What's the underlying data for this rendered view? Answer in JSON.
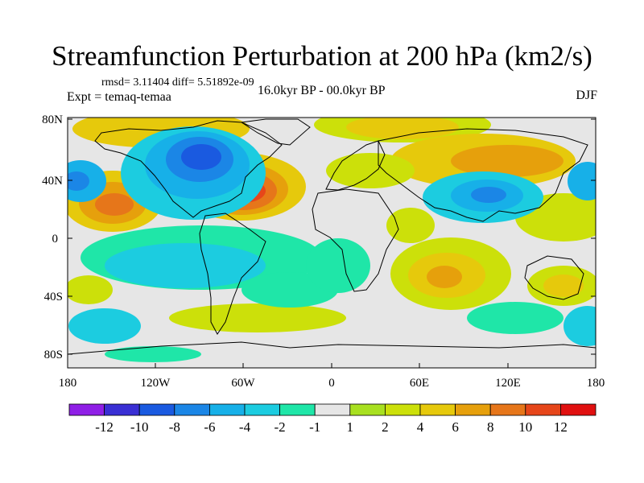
{
  "title": "Streamfunction Perturbation at 200 hPa (km2/s)",
  "stats": "rmsd= 3.11404 diff= 5.51892e-09",
  "experiment": "Expt = temaq-temaa",
  "period": "16.0kyr BP - 00.0kyr BP",
  "season": "DJF",
  "axes": {
    "lat_ticks": [
      "80N",
      "40N",
      "0",
      "40S",
      "80S"
    ],
    "lon_ticks": [
      "180",
      "120W",
      "60W",
      "0",
      "60E",
      "120E",
      "180"
    ]
  },
  "colorbar": {
    "levels": [
      "-12",
      "-10",
      "-8",
      "-6",
      "-4",
      "-2",
      "-1",
      "1",
      "2",
      "4",
      "6",
      "8",
      "10",
      "12"
    ],
    "colors": [
      "#8f1fe6",
      "#3a2fd4",
      "#1a5ae0",
      "#1b86e6",
      "#17b0e8",
      "#1ccce0",
      "#1fe6a8",
      "#e6e6e6",
      "#a8e020",
      "#cce00a",
      "#e6c90c",
      "#e6a00c",
      "#e6761a",
      "#e6461a",
      "#e01010"
    ]
  },
  "colors": {
    "background": "#e6e6e6",
    "coast": "#000000"
  }
}
